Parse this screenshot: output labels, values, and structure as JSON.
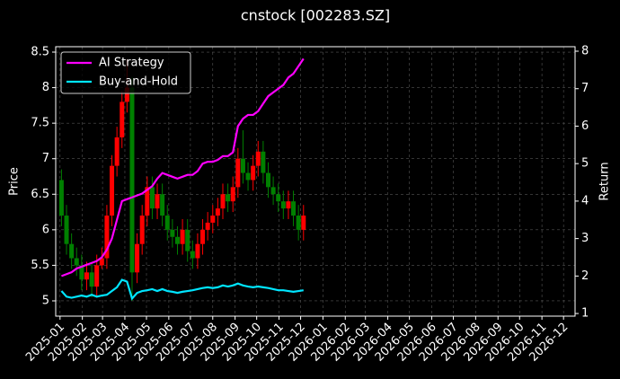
{
  "chart_data": {
    "type": "candlestick",
    "title": "cnstock [002283.SZ]",
    "ylabel": "Price",
    "y2label": "Return",
    "x": [
      "2025-01-03",
      "2025-01-10",
      "2025-01-17",
      "2025-01-24",
      "2025-01-31",
      "2025-02-07",
      "2025-02-14",
      "2025-02-21",
      "2025-02-28",
      "2025-03-07",
      "2025-03-14",
      "2025-03-21",
      "2025-03-28",
      "2025-04-04",
      "2025-04-11",
      "2025-04-18",
      "2025-04-25",
      "2025-05-02",
      "2025-05-09",
      "2025-05-16",
      "2025-05-23",
      "2025-05-30",
      "2025-06-06",
      "2025-06-13",
      "2025-06-20",
      "2025-06-27",
      "2025-07-04",
      "2025-07-11",
      "2025-07-18",
      "2025-07-25",
      "2025-08-01",
      "2025-08-08",
      "2025-08-15",
      "2025-08-22",
      "2025-08-29",
      "2025-09-05",
      "2025-09-12",
      "2025-09-19",
      "2025-09-26",
      "2025-10-03",
      "2025-10-10",
      "2025-10-17",
      "2025-10-24",
      "2025-10-31",
      "2025-11-07",
      "2025-11-14",
      "2025-11-21",
      "2025-11-28",
      "2025-12-05"
    ],
    "open": [
      6.7,
      6.2,
      5.8,
      5.6,
      5.5,
      5.3,
      5.4,
      5.2,
      5.5,
      5.6,
      6.2,
      6.9,
      7.3,
      7.8,
      8.0,
      5.4,
      5.8,
      6.2,
      6.6,
      6.3,
      6.5,
      6.2,
      6.0,
      5.9,
      5.8,
      6.0,
      5.7,
      5.6,
      5.8,
      6.0,
      6.1,
      6.2,
      6.3,
      6.5,
      6.4,
      6.6,
      7.0,
      6.8,
      6.7,
      6.9,
      7.1,
      6.8,
      6.6,
      6.5,
      6.4,
      6.3,
      6.4,
      6.2,
      6.0
    ],
    "high": [
      6.85,
      6.35,
      5.95,
      5.75,
      5.65,
      5.55,
      5.55,
      5.65,
      5.75,
      6.35,
      7.05,
      7.45,
      7.95,
      8.4,
      8.15,
      5.95,
      6.35,
      6.75,
      6.75,
      6.65,
      6.65,
      6.35,
      6.15,
      6.05,
      6.15,
      6.15,
      5.85,
      5.95,
      6.15,
      6.25,
      6.35,
      6.45,
      6.65,
      6.65,
      6.75,
      7.15,
      7.4,
      6.95,
      7.05,
      7.25,
      7.25,
      6.95,
      6.75,
      6.65,
      6.55,
      6.55,
      6.55,
      6.35,
      6.35
    ],
    "low": [
      6.05,
      5.65,
      5.45,
      5.35,
      5.15,
      5.15,
      5.05,
      5.05,
      5.45,
      5.45,
      6.05,
      6.75,
      7.15,
      7.65,
      5.0,
      5.25,
      5.65,
      6.05,
      6.15,
      6.15,
      6.05,
      5.85,
      5.75,
      5.65,
      5.65,
      5.55,
      5.45,
      5.45,
      5.65,
      5.85,
      5.95,
      6.05,
      6.15,
      6.25,
      6.25,
      6.45,
      6.65,
      6.55,
      6.55,
      6.75,
      6.65,
      6.45,
      6.35,
      6.25,
      6.15,
      6.15,
      6.05,
      5.85,
      5.85
    ],
    "close": [
      6.2,
      5.8,
      5.6,
      5.5,
      5.3,
      5.4,
      5.2,
      5.5,
      5.6,
      6.2,
      6.9,
      7.3,
      7.8,
      8.0,
      5.4,
      5.8,
      6.2,
      6.6,
      6.3,
      6.5,
      6.2,
      6.0,
      5.9,
      5.8,
      6.0,
      5.7,
      5.6,
      5.8,
      6.0,
      6.1,
      6.2,
      6.3,
      6.5,
      6.4,
      6.6,
      7.0,
      6.8,
      6.7,
      6.9,
      7.1,
      6.8,
      6.6,
      6.5,
      6.4,
      6.3,
      6.4,
      6.2,
      6.0,
      6.2
    ],
    "up_color": "#ff0000",
    "down_color": "#008000",
    "series": [
      {
        "name": "AI Strategy",
        "color": "#ff00ff",
        "axis": "y2",
        "values": [
          2.0,
          2.05,
          2.1,
          2.2,
          2.25,
          2.3,
          2.35,
          2.4,
          2.5,
          2.7,
          3.0,
          3.5,
          4.0,
          4.05,
          4.1,
          4.15,
          4.2,
          4.3,
          4.4,
          4.6,
          4.75,
          4.7,
          4.65,
          4.6,
          4.65,
          4.7,
          4.7,
          4.8,
          5.0,
          5.05,
          5.05,
          5.1,
          5.2,
          5.2,
          5.3,
          6.0,
          6.2,
          6.3,
          6.3,
          6.4,
          6.6,
          6.8,
          6.9,
          7.0,
          7.1,
          7.3,
          7.4,
          7.6,
          7.8
        ]
      },
      {
        "name": "Buy-and-Hold",
        "color": "#00e5ff",
        "axis": "y2",
        "values": [
          1.6,
          1.45,
          1.42,
          1.45,
          1.48,
          1.45,
          1.5,
          1.45,
          1.48,
          1.5,
          1.6,
          1.7,
          1.9,
          1.85,
          1.4,
          1.55,
          1.6,
          1.62,
          1.65,
          1.6,
          1.65,
          1.6,
          1.58,
          1.55,
          1.58,
          1.6,
          1.62,
          1.65,
          1.68,
          1.7,
          1.68,
          1.7,
          1.75,
          1.72,
          1.75,
          1.8,
          1.75,
          1.72,
          1.7,
          1.72,
          1.7,
          1.68,
          1.65,
          1.62,
          1.62,
          1.6,
          1.58,
          1.6,
          1.62
        ]
      }
    ],
    "xlim": [
      "2024-12-26",
      "2026-12-17"
    ],
    "xticks": [
      "2025-01",
      "2025-02",
      "2025-03",
      "2025-04",
      "2025-05",
      "2025-06",
      "2025-07",
      "2025-08",
      "2025-09",
      "2025-10",
      "2025-11",
      "2025-12",
      "2026-01",
      "2026-02",
      "2026-03",
      "2026-04",
      "2026-05",
      "2026-06",
      "2026-07",
      "2026-08",
      "2026-09",
      "2026-10",
      "2026-11",
      "2026-12"
    ],
    "ylim": [
      4.785,
      8.576
    ],
    "yticks": [
      5.0,
      5.5,
      6.0,
      6.5,
      7.0,
      7.5,
      8.0,
      8.5
    ],
    "y2lim": [
      0.93,
      8.12
    ],
    "y2ticks": [
      1,
      2,
      3,
      4,
      5,
      6,
      7,
      8
    ],
    "grid": true,
    "legend": "upper left"
  }
}
